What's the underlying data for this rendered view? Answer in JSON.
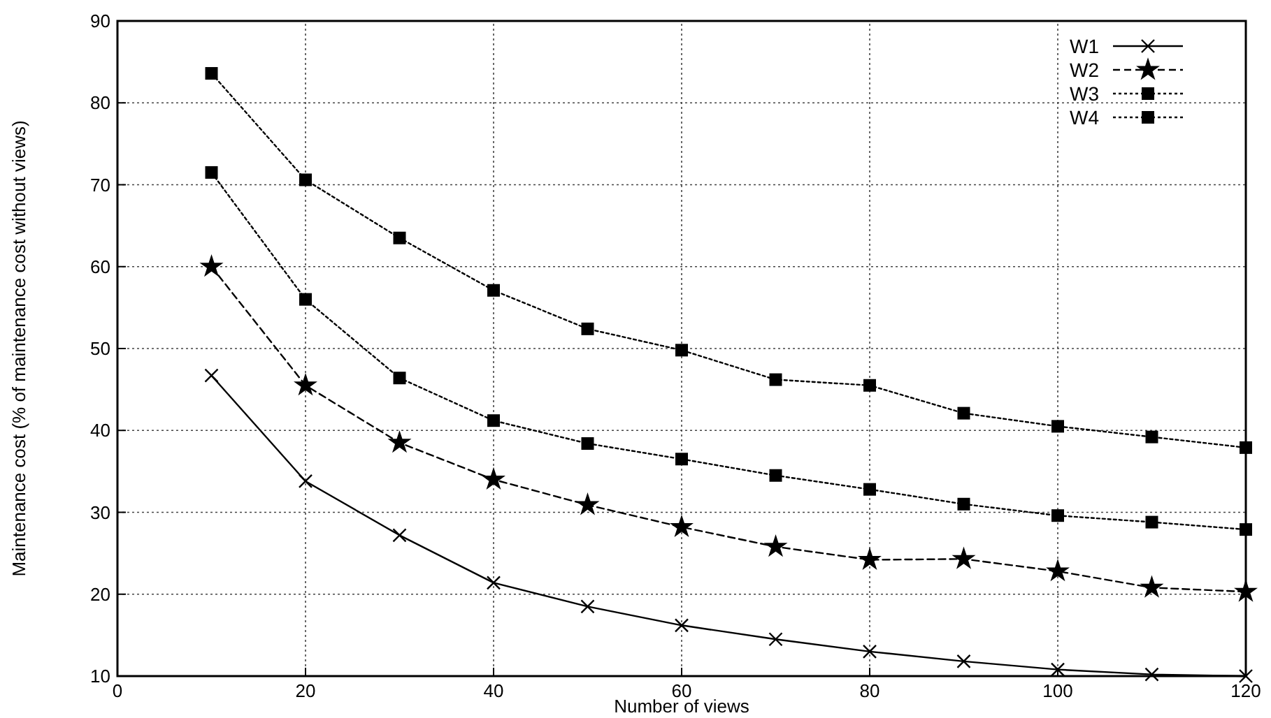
{
  "chart_data": {
    "type": "line",
    "xlabel": "Number of views",
    "ylabel": "Maintenance cost (% of maintenance cost without views)",
    "x": [
      10,
      20,
      30,
      40,
      50,
      60,
      70,
      80,
      90,
      100,
      110,
      120
    ],
    "xlim": [
      0,
      120
    ],
    "xticks": [
      0,
      20,
      40,
      60,
      80,
      100,
      120
    ],
    "ylim": [
      10,
      90
    ],
    "yticks": [
      10,
      20,
      30,
      40,
      50,
      60,
      70,
      80,
      90
    ],
    "grid": true,
    "legend": "top right",
    "series": [
      {
        "name": "W1",
        "color": "#000000",
        "marker": "cross",
        "line_style": "solid",
        "values": [
          46.7,
          33.8,
          27.2,
          21.4,
          18.5,
          16.2,
          14.5,
          13.0,
          11.8,
          10.8,
          10.2,
          10.0
        ]
      },
      {
        "name": "W2",
        "color": "#000000",
        "marker": "star",
        "line_style": "dashed",
        "values": [
          60.0,
          45.5,
          38.5,
          34.0,
          30.9,
          28.2,
          25.8,
          24.2,
          24.3,
          22.8,
          20.8,
          20.3
        ]
      },
      {
        "name": "W3",
        "color": "#000000",
        "marker": "square",
        "line_style": "dotted",
        "values": [
          71.5,
          56.0,
          46.4,
          41.2,
          38.4,
          36.5,
          34.5,
          32.8,
          31.0,
          29.6,
          28.8,
          27.9
        ]
      },
      {
        "name": "W4",
        "color": "#000000",
        "marker": "square",
        "line_style": "dotted",
        "values": [
          83.6,
          70.6,
          63.5,
          57.1,
          52.4,
          49.8,
          46.2,
          45.5,
          42.1,
          40.5,
          39.2,
          37.9
        ]
      }
    ]
  }
}
